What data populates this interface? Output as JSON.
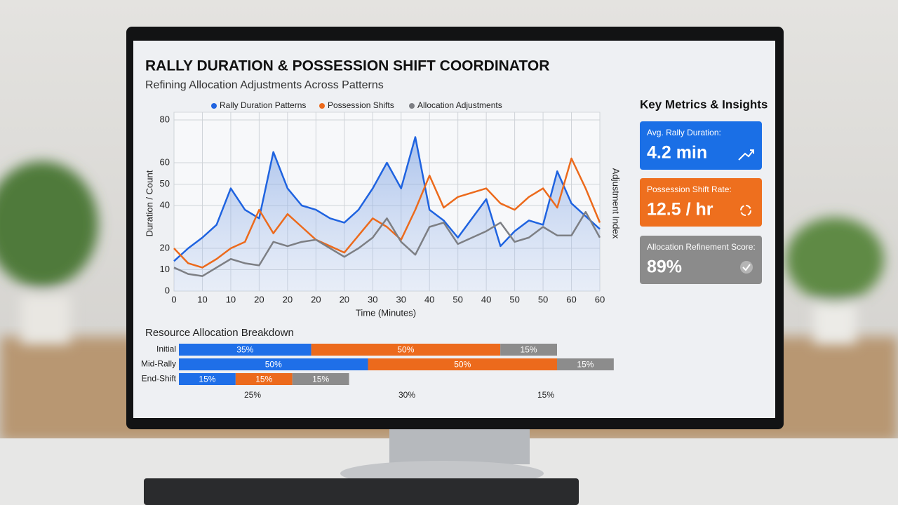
{
  "header": {
    "title": "RALLY DURATION & POSSESSION SHIFT COORDINATOR",
    "subtitle": "Refining Allocation Adjustments Across Patterns"
  },
  "chart_data": [
    {
      "type": "line",
      "x_label": "Time (Minutes)",
      "y_label": "Duration / Count",
      "y2_label": "Adjustment Index",
      "categories": [
        "0",
        null,
        "10",
        null,
        "10",
        null,
        "20",
        null,
        "20",
        null,
        "20",
        null,
        "20",
        null,
        "30",
        null,
        "30",
        null,
        "40",
        null,
        "50",
        null,
        "40",
        null,
        "50",
        null,
        "50",
        null,
        "60",
        null,
        "60"
      ],
      "series": [
        {
          "name": "Rally Duration Patterns",
          "color": "#1f63e0",
          "values": [
            14,
            20,
            25,
            31,
            48,
            38,
            34,
            65,
            48,
            40,
            38,
            34,
            32,
            38,
            48,
            60,
            48,
            72,
            38,
            33,
            25,
            34,
            43,
            21,
            28,
            33,
            31,
            56,
            41,
            35,
            29
          ]
        },
        {
          "name": "Possession Shifts",
          "color": "#ec6a1c",
          "values": [
            20,
            13,
            11,
            15,
            20,
            23,
            38,
            27,
            36,
            30,
            24,
            21,
            18,
            26,
            34,
            30,
            24,
            38,
            54,
            39,
            44,
            46,
            48,
            41,
            38,
            44,
            48,
            39,
            62,
            48,
            32
          ]
        },
        {
          "name": "Allocation Adjustments",
          "color": "#7d7f84",
          "values": [
            11,
            8,
            7,
            11,
            15,
            13,
            12,
            23,
            21,
            23,
            24,
            20,
            16,
            20,
            25,
            34,
            23,
            17,
            30,
            32,
            22,
            25,
            28,
            32,
            23,
            25,
            30,
            26,
            26,
            37,
            25
          ]
        }
      ],
      "ylim": [
        0,
        80
      ],
      "yticks": [
        0,
        10,
        20,
        40,
        50,
        60,
        80
      ],
      "grid": true,
      "legend": "top"
    },
    {
      "type": "bar",
      "orientation": "horizontal",
      "stacked": true,
      "title": "Resource Allocation Breakdown",
      "categories": [
        "Initial",
        "Mid-Rally",
        "End-Shift"
      ],
      "series": [
        {
          "color": "#1f6fe8",
          "values": [
            35,
            50,
            15
          ],
          "value_labels": [
            "35%",
            "50%",
            "15%"
          ]
        },
        {
          "color": "#ec6a1c",
          "values": [
            50,
            50,
            15
          ],
          "value_labels": [
            "50%",
            "50%",
            "15%"
          ]
        },
        {
          "color": "#8c8c8c",
          "values": [
            15,
            15,
            15
          ],
          "value_labels": [
            "15%",
            "15%",
            "15%"
          ]
        }
      ],
      "column_labels": [
        "25%",
        "30%",
        "15%"
      ]
    }
  ],
  "metrics": {
    "title": "Key Metrics & Insights",
    "cards": [
      {
        "label": "Avg. Rally Duration:",
        "value": "4.2 min",
        "color": "#1a6fe6"
      },
      {
        "label": "Possession Shift Rate:",
        "value": "12.5 / hr",
        "color": "#ee6f1e"
      },
      {
        "label": "Allocation Refinement Score:",
        "value": "89%",
        "color": "#8b8b8b"
      }
    ]
  }
}
